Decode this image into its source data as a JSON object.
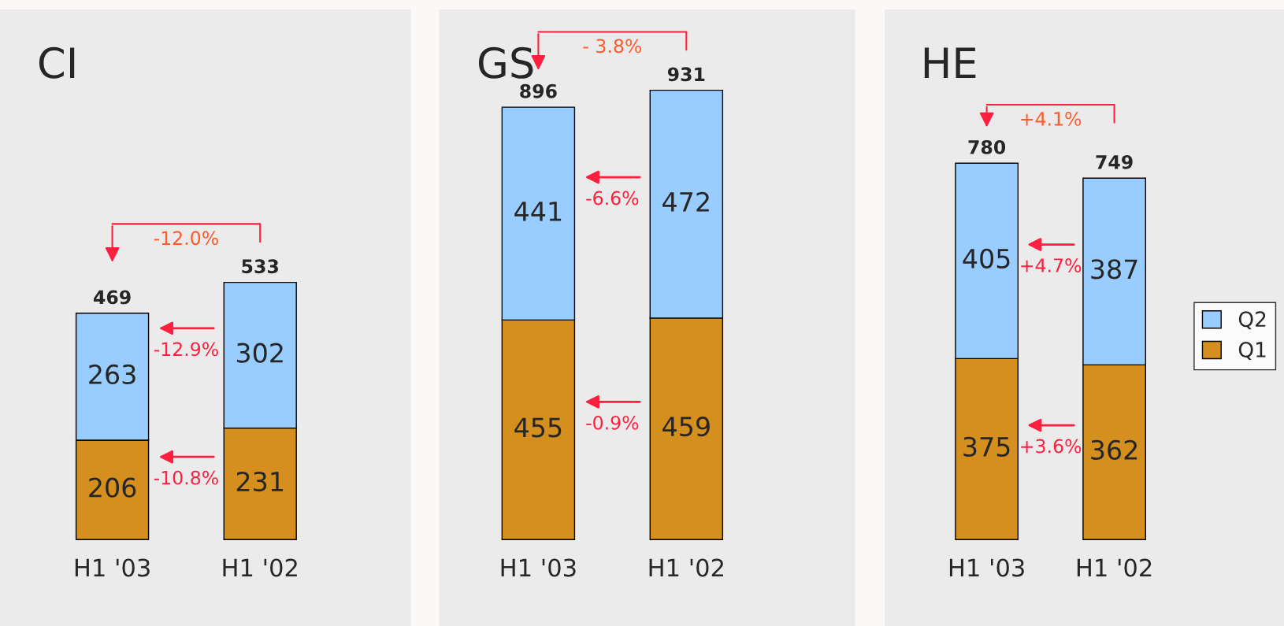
{
  "chart_data": [
    {
      "type": "bar",
      "title": "CI",
      "categories": [
        "H1 '03",
        "H1 '02"
      ],
      "stacked": true,
      "data_labels": true,
      "tick_labels": "x",
      "legend": false,
      "series": [
        {
          "color": "#d48f1f",
          "values": [
            206,
            231
          ]
        },
        {
          "color": "#99ccff",
          "values": [
            263,
            302
          ]
        }
      ],
      "totals": [
        "469",
        "533"
      ],
      "annotations": [
        "-12.0%",
        "-10.8%",
        "-12.9%"
      ]
    },
    {
      "type": "bar",
      "title": "GS",
      "categories": [
        "H1 '03",
        "H1 '02"
      ],
      "stacked": true,
      "data_labels": true,
      "tick_labels": "x",
      "legend": false,
      "series": [
        {
          "color": "#d48f1f",
          "values": [
            455,
            459
          ]
        },
        {
          "color": "#99ccff",
          "values": [
            441,
            472
          ]
        }
      ],
      "totals": [
        "896",
        "931"
      ],
      "annotations": [
        "- 3.8%",
        "-0.9%",
        "-6.6%"
      ]
    },
    {
      "type": "bar",
      "title": "HE",
      "categories": [
        "H1 '03",
        "H1 '02"
      ],
      "stacked": true,
      "data_labels": true,
      "tick_labels": "x",
      "legend": "right",
      "series": [
        {
          "name": "Q1",
          "color": "#d48f1f",
          "values": [
            375,
            362
          ]
        },
        {
          "name": "Q2",
          "color": "#99ccff",
          "values": [
            405,
            387
          ]
        }
      ],
      "totals": [
        "780",
        "749"
      ],
      "annotations": [
        "+4.1%",
        "+3.6%",
        "+4.7%"
      ]
    }
  ]
}
